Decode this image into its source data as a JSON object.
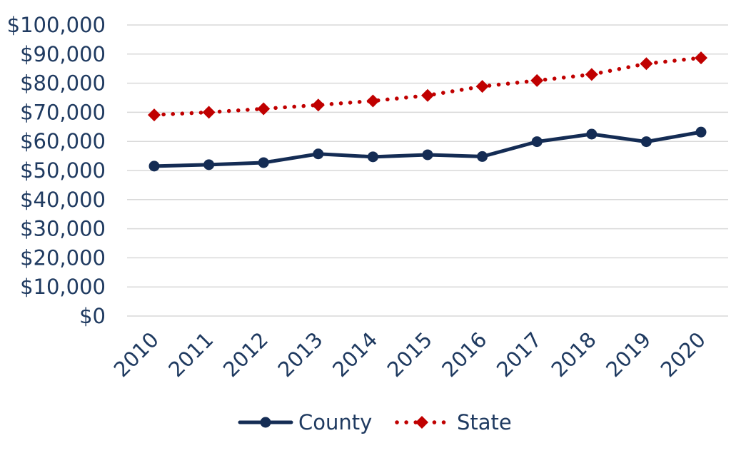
{
  "chart_data": {
    "type": "line",
    "title": "",
    "xlabel": "",
    "ylabel": "",
    "categories": [
      "2010",
      "2011",
      "2012",
      "2013",
      "2014",
      "2015",
      "2016",
      "2017",
      "2018",
      "2019",
      "2020"
    ],
    "ylim": [
      0,
      100000
    ],
    "y_ticks": [
      0,
      10000,
      20000,
      30000,
      40000,
      50000,
      60000,
      70000,
      80000,
      90000,
      100000
    ],
    "y_tick_labels": [
      "$0",
      "$10,000",
      "$20,000",
      "$30,000",
      "$40,000",
      "$50,000",
      "$60,000",
      "$70,000",
      "$80,000",
      "$90,000",
      "$100,000"
    ],
    "grid": true,
    "legend_position": "bottom",
    "series": [
      {
        "name": "County",
        "color": "#142c54",
        "line_style": "solid",
        "marker": "circle",
        "values": [
          51500,
          52000,
          52700,
          55700,
          54700,
          55400,
          54800,
          59900,
          62500,
          59900,
          63200
        ]
      },
      {
        "name": "State",
        "color": "#c00000",
        "line_style": "dotted",
        "marker": "diamond",
        "values": [
          69100,
          70000,
          71200,
          72500,
          73900,
          75800,
          78900,
          80900,
          83000,
          86700,
          88700
        ]
      }
    ]
  }
}
